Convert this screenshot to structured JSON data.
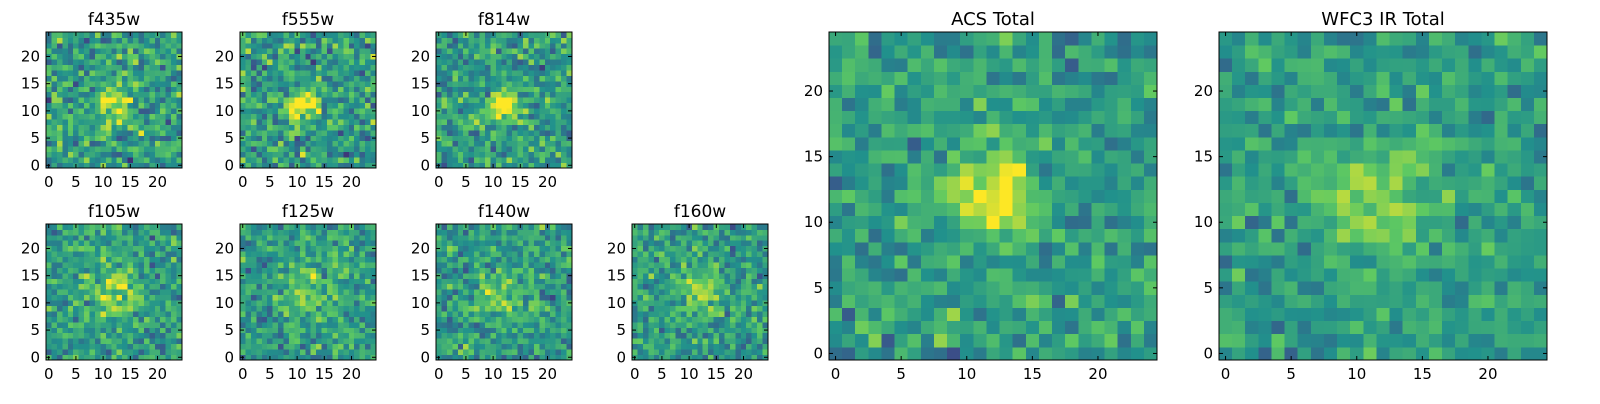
{
  "figure": {
    "colormap": [
      "#440154",
      "#3b528b",
      "#21918c",
      "#5ec962",
      "#fde725"
    ]
  },
  "chart_data": [
    {
      "id": "f435w",
      "type": "heatmap",
      "title": "f435w",
      "grid_size": 25,
      "xticks": [
        "0",
        "5",
        "10",
        "15",
        "20"
      ],
      "yticks": [
        "0",
        "5",
        "10",
        "15",
        "20"
      ],
      "xlim": [
        0,
        24
      ],
      "ylim": [
        0,
        24
      ],
      "grid": false,
      "seed": 11,
      "source_peak": {
        "x": 12,
        "y": 12,
        "sigma": 2.5,
        "amp": 0.35
      },
      "noise": 0.55
    },
    {
      "id": "f555w",
      "type": "heatmap",
      "title": "f555w",
      "grid_size": 25,
      "xticks": [
        "0",
        "5",
        "10",
        "15",
        "20"
      ],
      "yticks": [
        "0",
        "5",
        "10",
        "15",
        "20"
      ],
      "xlim": [
        0,
        24
      ],
      "ylim": [
        0,
        24
      ],
      "grid": false,
      "seed": 23,
      "source_peak": {
        "x": 11,
        "y": 11,
        "sigma": 1.8,
        "amp": 0.55
      },
      "noise": 0.55
    },
    {
      "id": "f814w",
      "type": "heatmap",
      "title": "f814w",
      "grid_size": 25,
      "xticks": [
        "0",
        "5",
        "10",
        "15",
        "20"
      ],
      "yticks": [
        "0",
        "5",
        "10",
        "15",
        "20"
      ],
      "xlim": [
        0,
        24
      ],
      "ylim": [
        0,
        24
      ],
      "grid": false,
      "seed": 37,
      "source_peak": {
        "x": 12,
        "y": 11,
        "sigma": 1.8,
        "amp": 0.6
      },
      "noise": 0.5
    },
    {
      "id": "f105w",
      "type": "heatmap",
      "title": "f105w",
      "grid_size": 25,
      "xticks": [
        "0",
        "5",
        "10",
        "15",
        "20"
      ],
      "yticks": [
        "0",
        "5",
        "10",
        "15",
        "20"
      ],
      "xlim": [
        0,
        24
      ],
      "ylim": [
        0,
        24
      ],
      "grid": false,
      "seed": 41,
      "source_peak": {
        "x": 12,
        "y": 12,
        "sigma": 3,
        "amp": 0.3
      },
      "noise": 0.45
    },
    {
      "id": "f125w",
      "type": "heatmap",
      "title": "f125w",
      "grid_size": 25,
      "xticks": [
        "0",
        "5",
        "10",
        "15",
        "20"
      ],
      "yticks": [
        "0",
        "5",
        "10",
        "15",
        "20"
      ],
      "xlim": [
        0,
        24
      ],
      "ylim": [
        0,
        24
      ],
      "grid": false,
      "seed": 53,
      "source_peak": {
        "x": 12,
        "y": 12,
        "sigma": 3,
        "amp": 0.25
      },
      "noise": 0.45
    },
    {
      "id": "f140w",
      "type": "heatmap",
      "title": "f140w",
      "grid_size": 25,
      "xticks": [
        "0",
        "5",
        "10",
        "15",
        "20"
      ],
      "yticks": [
        "0",
        "5",
        "10",
        "15",
        "20"
      ],
      "xlim": [
        0,
        24
      ],
      "ylim": [
        0,
        24
      ],
      "grid": false,
      "seed": 67,
      "source_peak": {
        "x": 11,
        "y": 12,
        "sigma": 3,
        "amp": 0.25
      },
      "noise": 0.45
    },
    {
      "id": "f160w",
      "type": "heatmap",
      "title": "f160w",
      "grid_size": 25,
      "xticks": [
        "0",
        "5",
        "10",
        "15",
        "20"
      ],
      "yticks": [
        "0",
        "5",
        "10",
        "15",
        "20"
      ],
      "xlim": [
        0,
        24
      ],
      "ylim": [
        0,
        24
      ],
      "grid": false,
      "seed": 79,
      "source_peak": {
        "x": 12,
        "y": 12,
        "sigma": 2.5,
        "amp": 0.3
      },
      "noise": 0.45
    },
    {
      "id": "acs-total",
      "type": "heatmap",
      "title": "ACS Total",
      "grid_size": 25,
      "xticks": [
        "0",
        "5",
        "10",
        "15",
        "20"
      ],
      "yticks": [
        "0",
        "5",
        "10",
        "15",
        "20"
      ],
      "xlim": [
        0,
        24
      ],
      "ylim": [
        0,
        24
      ],
      "grid": false,
      "seed": 97,
      "source_peak": {
        "x": 12,
        "y": 12,
        "sigma": 2,
        "amp": 0.55
      },
      "noise": 0.4
    },
    {
      "id": "wfc3-ir-total",
      "type": "heatmap",
      "title": "WFC3 IR Total",
      "grid_size": 25,
      "xticks": [
        "0",
        "5",
        "10",
        "15",
        "20"
      ],
      "yticks": [
        "0",
        "5",
        "10",
        "15",
        "20"
      ],
      "xlim": [
        0,
        24
      ],
      "ylim": [
        0,
        24
      ],
      "grid": false,
      "seed": 113,
      "source_peak": {
        "x": 12,
        "y": 12,
        "sigma": 3,
        "amp": 0.3
      },
      "noise": 0.35
    }
  ]
}
